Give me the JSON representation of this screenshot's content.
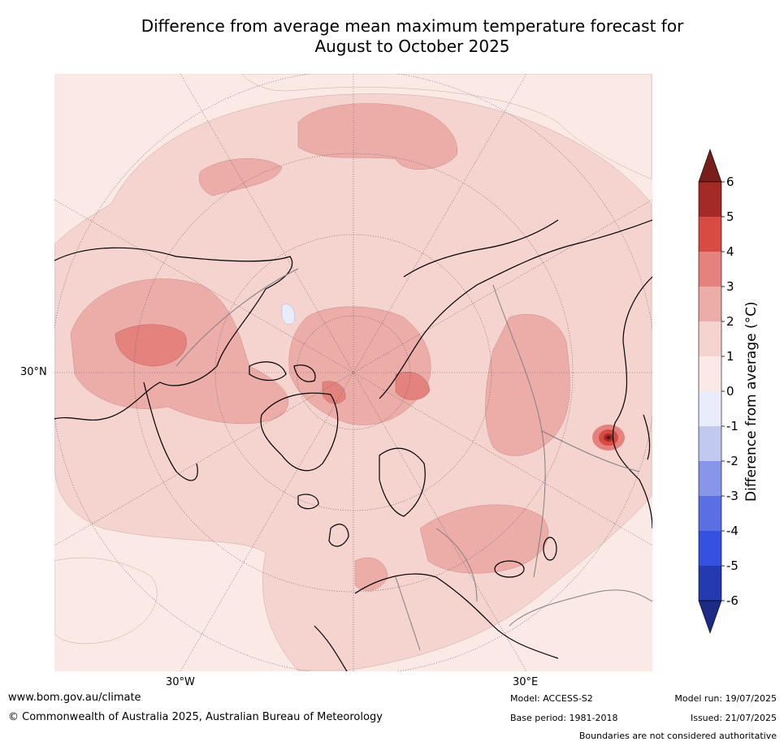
{
  "title": {
    "line1": "Difference from average mean maximum temperature forecast for",
    "line2": "August to October 2025"
  },
  "map": {
    "projection": "north polar stereographic",
    "lat_labels": [
      "30°N"
    ],
    "lon_labels": [
      "30°W",
      "30°E"
    ],
    "colors": {
      "band_0_1": "#fbe9e6",
      "band_1_2": "#f5d3cf",
      "band_2_3": "#ecaca8",
      "band_3_4": "#e4837e",
      "band_4_5": "#d84b43",
      "band_5_6": "#a42a26",
      "band_m1_0": "#e8ecfb",
      "coastline": "#000000",
      "boundary": "#808080",
      "graticule": "#555555"
    }
  },
  "colorbar": {
    "title": "Difference from average (°C)",
    "ticks": [
      "6",
      "5",
      "4",
      "3",
      "2",
      "1",
      "0",
      "-1",
      "-2",
      "-3",
      "-4",
      "-5",
      "-6"
    ],
    "colors_top_to_bottom": [
      "#a42a26",
      "#d84b43",
      "#e4837e",
      "#ecaca8",
      "#f5d3cf",
      "#fbe9e6",
      "#e8ecfb",
      "#c2c9f0",
      "#8896ea",
      "#5a6fe3",
      "#3451df",
      "#233ab0"
    ],
    "extend_max_color": "#7a1e1b",
    "extend_min_color": "#1c2c86"
  },
  "footer": {
    "website": "www.bom.gov.au/climate",
    "copyright": "© Commonwealth of Australia 2025, Australian Bureau of Meteorology",
    "model": "Model: ACCESS-S2",
    "base_period": "Base period: 1981-2018",
    "model_run": "Model run: 19/07/2025",
    "issued": "Issued: 21/07/2025",
    "disclaimer": "Boundaries are not considered authoritative"
  }
}
